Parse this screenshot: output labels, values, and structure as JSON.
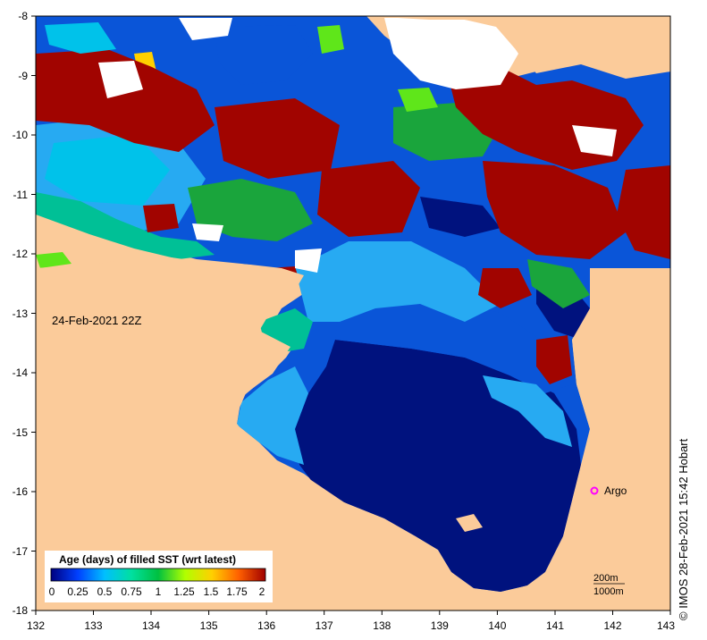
{
  "map": {
    "date_label": "24-Feb-2021 22Z",
    "credit": "© IMOS 28-Feb-2021 15:42 Hobart",
    "marker_label": "Argo",
    "contour_labels": [
      "200m",
      "1000m"
    ],
    "x_ticks": [
      "132",
      "133",
      "134",
      "135",
      "136",
      "137",
      "138",
      "139",
      "140",
      "141",
      "142",
      "143"
    ],
    "y_ticks": [
      "-8",
      "-9",
      "-10",
      "-11",
      "-12",
      "-13",
      "-14",
      "-15",
      "-16",
      "-17",
      "-18"
    ]
  },
  "legend": {
    "title": "Age (days) of filled SST (wrt latest)",
    "ticks": [
      "0",
      "0.25",
      "0.5",
      "0.75",
      "1",
      "1.25",
      "1.5",
      "1.75",
      "2"
    ],
    "colors": [
      "#00007f",
      "#0040ff",
      "#00bfff",
      "#00e0a0",
      "#00c040",
      "#b0ff00",
      "#ffd000",
      "#ff6000",
      "#a00000"
    ]
  },
  "colors": {
    "land": "#fbcb9a",
    "ocean_deep": "#00127e",
    "ocean_mid": "#0a55d8",
    "ocean_light": "#27aaf2",
    "ocean_cyan": "#00c2ea",
    "teal": "#00c096",
    "green": "#1aa53c",
    "lime": "#5fe61a",
    "old": "#a10400",
    "cloud": "#ffffff",
    "argo": "#ff00ff"
  }
}
